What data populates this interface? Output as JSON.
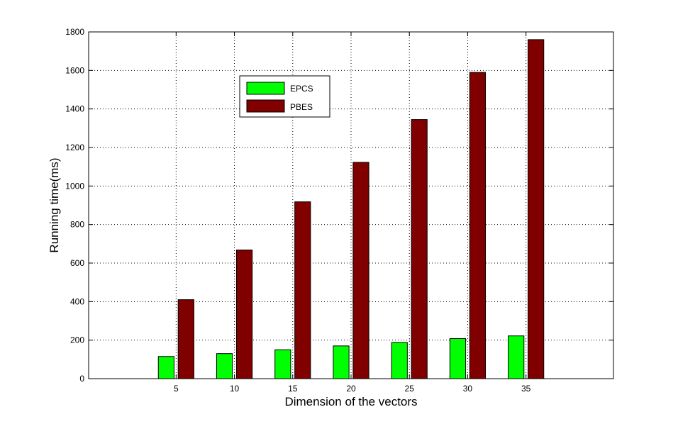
{
  "chart_data": {
    "type": "bar",
    "title": "",
    "xlabel": "Dimension of the vectors",
    "ylabel": "Running time(ms)",
    "categories": [
      "5",
      "10",
      "15",
      "20",
      "25",
      "30",
      "35"
    ],
    "x": [
      5,
      10,
      15,
      20,
      25,
      30,
      35
    ],
    "xlim": [
      -2.5,
      42.5
    ],
    "ylim": [
      0,
      1800
    ],
    "yticks": [
      0,
      200,
      400,
      600,
      800,
      1000,
      1200,
      1400,
      1600,
      1800
    ],
    "ytick_labels": [
      "0",
      "200",
      "400",
      "600",
      "800",
      "1000",
      "1200",
      "1400",
      "1600",
      "1800"
    ],
    "grid": true,
    "legend_position": "upper-left-center",
    "series": [
      {
        "name": "EPCS",
        "color": "#00ff00",
        "values": [
          115,
          130,
          150,
          170,
          188,
          208,
          222
        ]
      },
      {
        "name": "PBES",
        "color": "#800000",
        "values": [
          410,
          668,
          918,
          1123,
          1345,
          1590,
          1760
        ]
      }
    ]
  }
}
